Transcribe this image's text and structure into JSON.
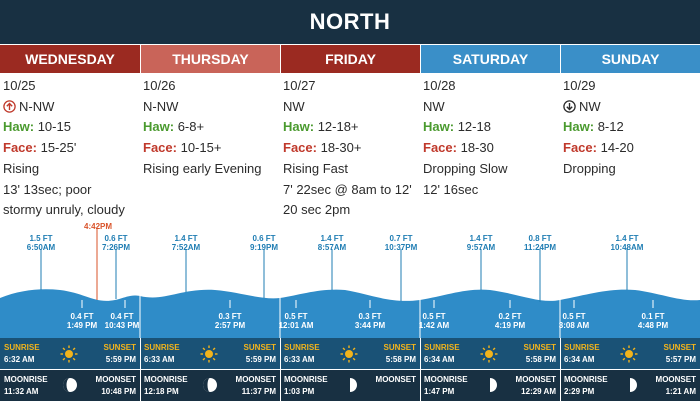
{
  "title": "NORTH",
  "colors": {
    "title_bg": "#183042",
    "header_wednesday": "#9b2a21",
    "header_thursday": "#c96459",
    "header_friday": "#9b2a21",
    "header_saturday": "#3a8fc8",
    "header_sunday": "#3a8fc8",
    "haw_label": "#4a9a2e",
    "face_label": "#c0392b",
    "tide_water": "#2f8cc8",
    "sun_row": "#1a5276",
    "moon_row": "#183042",
    "sunrise_label": "#f3b41b",
    "current_time": "#d9532a"
  },
  "now_marker": "4:42PM",
  "days": [
    {
      "name": "WEDNESDAY",
      "date": "10/25",
      "wind": "N-NW",
      "wind_icon": "arrow-up-circle-icon",
      "haw_label": "Haw:",
      "haw": "10-15",
      "face_label": "Face:",
      "face": "15-25'",
      "trend": "Rising",
      "swell": "13' 13sec; poor",
      "notes": "stormy unruly, cloudy",
      "tides": [
        {
          "height": "1.5 FT",
          "time": "6:50AM",
          "type": "high"
        },
        {
          "height": "0.4 FT",
          "time": "1:49 PM",
          "type": "low"
        },
        {
          "height": "0.6 FT",
          "time": "7:26PM",
          "type": "high"
        },
        {
          "height": "0.4 FT",
          "time": "10:43 PM",
          "type": "low"
        }
      ],
      "sunrise_label": "SUNRISE",
      "sunrise": "6:32 AM",
      "sunset_label": "SUNSET",
      "sunset": "5:59 PM",
      "moonrise_label": "MOONRISE",
      "moonrise": "11:32 AM",
      "moonset_label": "MOONSET",
      "moonset": "10:48 PM",
      "moon_phase": "waxing-gibbous"
    },
    {
      "name": "THURSDAY",
      "date": "10/26",
      "wind": "N-NW",
      "wind_icon": "",
      "haw_label": "Haw:",
      "haw": "6-8+",
      "face_label": "Face:",
      "face": "10-15+",
      "trend": "Rising early Evening",
      "swell": "",
      "notes": "",
      "tides": [
        {
          "height": "1.4 FT",
          "time": "7:52AM",
          "type": "high"
        },
        {
          "height": "0.6 FT",
          "time": "9:19PM",
          "type": "high"
        },
        {
          "height": "0.3 FT",
          "time": "2:57 PM",
          "type": "low"
        }
      ],
      "sunrise_label": "SUNRISE",
      "sunrise": "6:33 AM",
      "sunset_label": "SUNSET",
      "sunset": "5:59 PM",
      "moonrise_label": "MOONRISE",
      "moonrise": "12:18 PM",
      "moonset_label": "MOONSET",
      "moonset": "11:37 PM",
      "moon_phase": "waxing-gibbous"
    },
    {
      "name": "FRIDAY",
      "date": "10/27",
      "wind": "NW",
      "wind_icon": "",
      "haw_label": "Haw:",
      "haw": "12-18+",
      "face_label": "Face:",
      "face": "18-30+",
      "trend": "Rising Fast",
      "swell": "7' 22sec @ 8am to 12'",
      "notes": "20 sec 2pm",
      "tides": [
        {
          "height": "1.4 FT",
          "time": "8:57AM",
          "type": "high"
        },
        {
          "height": "0.7 FT",
          "time": "10:37PM",
          "type": "high"
        },
        {
          "height": "0.5 FT",
          "time": "12:01 AM",
          "type": "low"
        },
        {
          "height": "0.3 FT",
          "time": "3:44 PM",
          "type": "low"
        }
      ],
      "sunrise_label": "SUNRISE",
      "sunrise": "6:33 AM",
      "sunset_label": "SUNSET",
      "sunset": "5:58 PM",
      "moonrise_label": "MOONRISE",
      "moonrise": "1:03 PM",
      "moonset_label": "MOONSET",
      "moonset": "",
      "moon_phase": "first-quarter"
    },
    {
      "name": "SATURDAY",
      "date": "10/28",
      "wind": "NW",
      "wind_icon": "",
      "haw_label": "Haw:",
      "haw": "12-18",
      "face_label": "Face:",
      "face": "18-30",
      "trend": "Dropping Slow",
      "swell": "12' 16sec",
      "notes": "",
      "tides": [
        {
          "height": "1.4 FT",
          "time": "9:57AM",
          "type": "high"
        },
        {
          "height": "0.8 FT",
          "time": "11:24PM",
          "type": "high"
        },
        {
          "height": "0.5 FT",
          "time": "1:42 AM",
          "type": "low"
        },
        {
          "height": "0.2 FT",
          "time": "4:19 PM",
          "type": "low"
        }
      ],
      "sunrise_label": "SUNRISE",
      "sunrise": "6:34 AM",
      "sunset_label": "SUNSET",
      "sunset": "5:58 PM",
      "moonrise_label": "MOONRISE",
      "moonrise": "1:47 PM",
      "moonset_label": "MOONSET",
      "moonset": "12:29 AM",
      "moon_phase": "first-quarter"
    },
    {
      "name": "SUNDAY",
      "date": "10/29",
      "wind": "NW",
      "wind_icon": "arrow-down-circle-icon",
      "haw_label": "Haw:",
      "haw": "8-12",
      "face_label": "Face:",
      "face": "14-20",
      "trend": "Dropping",
      "swell": "",
      "notes": "",
      "tides": [
        {
          "height": "1.4 FT",
          "time": "10:48AM",
          "type": "high"
        },
        {
          "height": "0.5 FT",
          "time": "3:08 AM",
          "type": "low"
        },
        {
          "height": "0.1 FT",
          "time": "4:48 PM",
          "type": "low"
        }
      ],
      "sunrise_label": "SUNRISE",
      "sunrise": "6:34 AM",
      "sunset_label": "SUNSET",
      "sunset": "5:57 PM",
      "moonrise_label": "MOONRISE",
      "moonrise": "2:29 PM",
      "moonset_label": "MOONSET",
      "moonset": "1:21 AM",
      "moon_phase": "first-quarter"
    }
  ]
}
